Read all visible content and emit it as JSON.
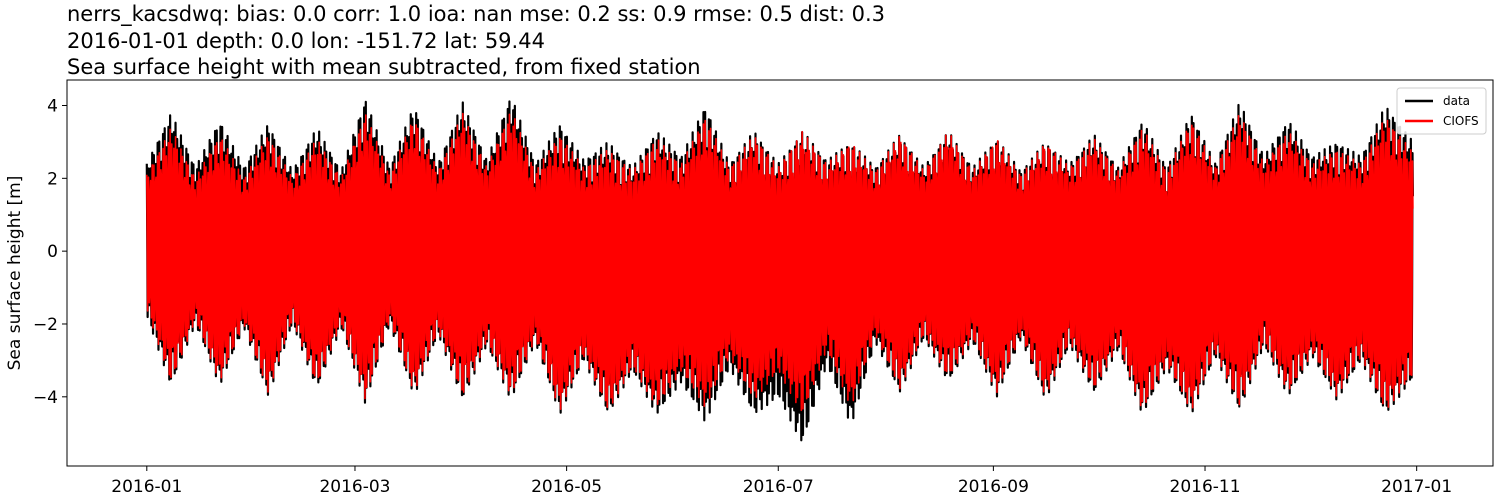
{
  "chart_data": {
    "type": "line",
    "title_lines": [
      "nerrs_kacsdwq: bias: 0.0  corr: 1.0  ioa: nan  mse: 0.2  ss: 0.9  rmse: 0.5  dist: 0.3",
      "2016-01-01 depth: 0.0 lon: -151.72 lat: 59.44",
      "Sea surface height with mean subtracted, from fixed station"
    ],
    "xlabel": "",
    "ylabel": "Sea surface height [m]",
    "x_range": [
      "2015-12-09",
      "2017-01-23"
    ],
    "ylim": [
      -5.9,
      4.7
    ],
    "x_ticks": [
      "2016-01",
      "2016-03",
      "2016-05",
      "2016-07",
      "2016-09",
      "2016-11",
      "2017-01"
    ],
    "y_ticks": [
      -4,
      -2,
      0,
      2,
      4
    ],
    "y_tick_labels": [
      "−4",
      "−2",
      "0",
      "2",
      "4"
    ],
    "grid": false,
    "legend_position": "top-right",
    "series": [
      {
        "name": "data",
        "color": "#000000",
        "dates": [
          "2016-01-01",
          "2016-01-08",
          "2016-01-15",
          "2016-01-22",
          "2016-01-29",
          "2016-02-05",
          "2016-02-12",
          "2016-02-19",
          "2016-02-26",
          "2016-03-04",
          "2016-03-11",
          "2016-03-18",
          "2016-03-25",
          "2016-04-01",
          "2016-04-08",
          "2016-04-15",
          "2016-04-22",
          "2016-04-29",
          "2016-05-06",
          "2016-05-13",
          "2016-05-20",
          "2016-05-27",
          "2016-06-03",
          "2016-06-10",
          "2016-06-17",
          "2016-06-24",
          "2016-07-01",
          "2016-07-08",
          "2016-07-15",
          "2016-07-22",
          "2016-07-29",
          "2016-08-05",
          "2016-08-12",
          "2016-08-19",
          "2016-08-26",
          "2016-09-02",
          "2016-09-09",
          "2016-09-16",
          "2016-09-23",
          "2016-09-30",
          "2016-10-07",
          "2016-10-14",
          "2016-10-21",
          "2016-10-28",
          "2016-11-04",
          "2016-11-11",
          "2016-11-18",
          "2016-11-25",
          "2016-12-02",
          "2016-12-09",
          "2016-12-16",
          "2016-12-23",
          "2016-12-31"
        ],
        "max": [
          2.4,
          3.8,
          2.3,
          3.6,
          2.3,
          3.5,
          2.2,
          3.4,
          2.2,
          4.2,
          2.3,
          4.0,
          2.4,
          4.1,
          2.5,
          4.3,
          2.4,
          3.5,
          2.5,
          3.0,
          2.3,
          3.3,
          2.6,
          4.0,
          2.4,
          3.3,
          2.4,
          3.3,
          2.5,
          3.0,
          2.3,
          3.2,
          2.3,
          3.3,
          2.3,
          3.1,
          2.2,
          3.0,
          2.4,
          3.2,
          2.3,
          3.6,
          2.3,
          3.8,
          2.4,
          4.1,
          2.6,
          3.6,
          2.6,
          3.0,
          2.6,
          4.0,
          3.0
        ],
        "min": [
          -1.8,
          -3.7,
          -2.0,
          -3.7,
          -2.1,
          -4.0,
          -2.0,
          -3.8,
          -2.1,
          -4.2,
          -2.0,
          -4.0,
          -2.3,
          -4.1,
          -2.6,
          -4.1,
          -2.5,
          -4.5,
          -3.0,
          -4.5,
          -3.3,
          -4.5,
          -3.6,
          -4.7,
          -3.2,
          -4.5,
          -4.0,
          -5.3,
          -3.1,
          -4.8,
          -2.5,
          -3.9,
          -2.4,
          -3.6,
          -2.5,
          -4.0,
          -2.4,
          -4.1,
          -2.6,
          -3.9,
          -2.7,
          -4.5,
          -3.2,
          -4.5,
          -2.9,
          -4.4,
          -2.6,
          -4.0,
          -2.9,
          -4.1,
          -3.0,
          -4.5,
          -3.5
        ]
      },
      {
        "name": "CIOFS",
        "color": "#ff0000",
        "dates": [
          "2016-01-01",
          "2016-01-08",
          "2016-01-15",
          "2016-01-22",
          "2016-01-29",
          "2016-02-05",
          "2016-02-12",
          "2016-02-19",
          "2016-02-26",
          "2016-03-04",
          "2016-03-11",
          "2016-03-18",
          "2016-03-25",
          "2016-04-01",
          "2016-04-08",
          "2016-04-15",
          "2016-04-22",
          "2016-04-29",
          "2016-05-06",
          "2016-05-13",
          "2016-05-20",
          "2016-05-27",
          "2016-06-03",
          "2016-06-10",
          "2016-06-17",
          "2016-06-24",
          "2016-07-01",
          "2016-07-08",
          "2016-07-15",
          "2016-07-22",
          "2016-07-29",
          "2016-08-05",
          "2016-08-12",
          "2016-08-19",
          "2016-08-26",
          "2016-09-02",
          "2016-09-09",
          "2016-09-16",
          "2016-09-23",
          "2016-09-30",
          "2016-10-07",
          "2016-10-14",
          "2016-10-21",
          "2016-10-28",
          "2016-11-04",
          "2016-11-11",
          "2016-11-18",
          "2016-11-25",
          "2016-12-02",
          "2016-12-09",
          "2016-12-16",
          "2016-12-23",
          "2016-12-31"
        ],
        "max": [
          2.1,
          3.4,
          2.0,
          3.2,
          2.0,
          3.2,
          2.0,
          3.1,
          2.0,
          3.8,
          2.1,
          3.7,
          2.2,
          3.8,
          2.3,
          3.9,
          2.2,
          3.2,
          2.3,
          2.8,
          2.2,
          3.1,
          2.4,
          3.7,
          2.3,
          3.2,
          2.3,
          3.3,
          2.4,
          3.0,
          2.2,
          3.2,
          2.2,
          3.3,
          2.2,
          3.1,
          2.1,
          3.0,
          2.3,
          3.1,
          2.2,
          3.4,
          2.2,
          3.6,
          2.3,
          3.8,
          2.4,
          3.3,
          2.4,
          2.8,
          2.4,
          3.7,
          2.7
        ],
        "min": [
          -1.6,
          -3.6,
          -1.9,
          -3.6,
          -2.0,
          -3.9,
          -1.9,
          -3.7,
          -2.0,
          -4.1,
          -1.9,
          -3.9,
          -2.2,
          -4.0,
          -2.5,
          -4.0,
          -2.4,
          -4.4,
          -2.9,
          -4.4,
          -3.2,
          -4.3,
          -3.3,
          -4.3,
          -2.9,
          -4.1,
          -3.3,
          -4.5,
          -2.7,
          -4.3,
          -2.3,
          -3.8,
          -2.3,
          -3.5,
          -2.4,
          -3.9,
          -2.3,
          -4.0,
          -2.5,
          -3.8,
          -2.6,
          -4.4,
          -3.1,
          -4.4,
          -2.8,
          -4.3,
          -2.5,
          -3.9,
          -2.8,
          -4.0,
          -2.9,
          -4.4,
          -3.4
        ]
      }
    ]
  }
}
